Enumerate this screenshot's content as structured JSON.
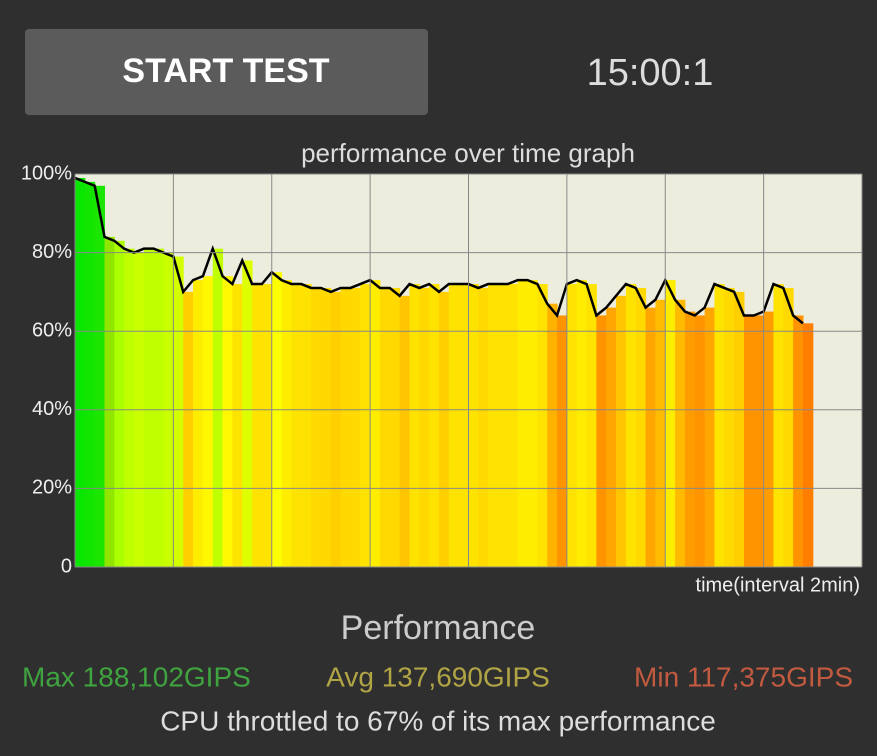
{
  "button": "START TEST",
  "timer": "15:00:1",
  "chart_data": {
    "type": "area",
    "title": "performance over time graph",
    "x_label": "time(interval 2min)",
    "x": [
      0,
      0.2,
      0.4,
      0.6,
      0.8,
      1,
      1.2,
      1.4,
      1.6,
      1.8,
      2,
      2.2,
      2.4,
      2.6,
      2.8,
      3,
      3.2,
      3.4,
      3.6,
      3.8,
      4,
      4.2,
      4.4,
      4.6,
      4.8,
      5,
      5.2,
      5.4,
      5.6,
      5.8,
      6,
      6.2,
      6.4,
      6.6,
      6.8,
      7,
      7.2,
      7.4,
      7.6,
      7.8,
      8,
      8.2,
      8.4,
      8.6,
      8.8,
      9,
      9.2,
      9.4,
      9.6,
      9.8,
      10,
      10.2,
      10.4,
      10.6,
      10.8,
      11,
      11.2,
      11.4,
      11.6,
      11.8,
      12,
      12.2,
      12.4,
      12.6,
      12.8,
      13,
      13.2,
      13.4,
      13.6,
      13.8,
      14,
      14.2,
      14.4,
      14.6,
      14.8
    ],
    "values": [
      99,
      98,
      97,
      84,
      83,
      81,
      80,
      81,
      81,
      80,
      79,
      70,
      73,
      74,
      81,
      74,
      72,
      78,
      72,
      72,
      75,
      73,
      72,
      72,
      71,
      71,
      70,
      71,
      71,
      72,
      73,
      71,
      71,
      69,
      72,
      71,
      72,
      70,
      72,
      72,
      72,
      71,
      72,
      72,
      72,
      73,
      73,
      72,
      67,
      64,
      72,
      73,
      72,
      64,
      66,
      69,
      72,
      71,
      66,
      68,
      73,
      68,
      65,
      64,
      66,
      72,
      71,
      70,
      64,
      64,
      65,
      72,
      71,
      64,
      62
    ],
    "xlim": [
      0,
      16
    ],
    "xticks": [
      0,
      2,
      4,
      6,
      8,
      10,
      12,
      14,
      16
    ],
    "ylim": [
      0,
      100
    ],
    "yticks": [
      0,
      {
        "value": 20,
        "label": "20%"
      },
      {
        "value": 40,
        "label": "40%"
      },
      {
        "value": 60,
        "label": "60%"
      },
      {
        "value": 80,
        "label": "80%"
      },
      {
        "value": 100,
        "label": "100%"
      }
    ],
    "grid": true,
    "color": "#000000"
  },
  "stats": {
    "heading": "Performance",
    "max": "Max 188,102GIPS",
    "avg": "Avg 137,690GIPS",
    "min": "Min 117,375GIPS",
    "summary": "CPU throttled to 67% of its max performance"
  }
}
